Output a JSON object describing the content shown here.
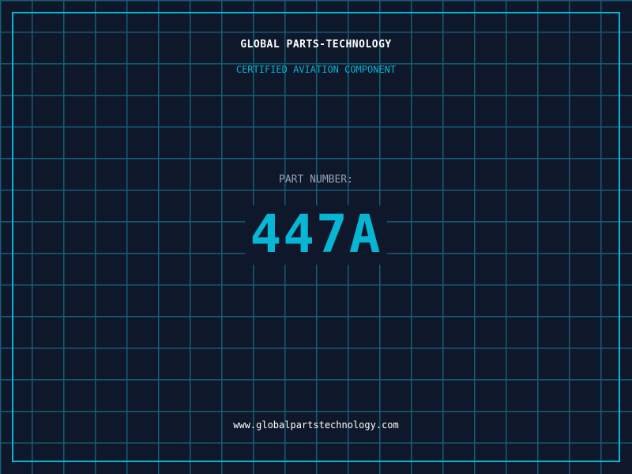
{
  "header": {
    "title": "GLOBAL PARTS-TECHNOLOGY",
    "subtitle": "CERTIFIED AVIATION COMPONENT"
  },
  "part": {
    "label": "PART NUMBER:",
    "number": "447A"
  },
  "footer": {
    "url": "www.globalpartstechnology.com"
  },
  "colors": {
    "background": "#0f172a",
    "accent": "#06b6d4",
    "grid": "#155e75",
    "label": "#94a3b8"
  }
}
